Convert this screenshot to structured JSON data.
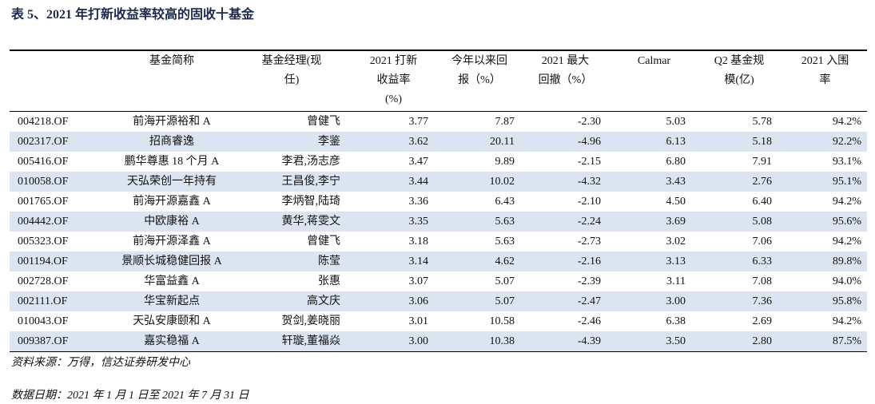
{
  "title": "表 5、2021 年打新收益率较高的固收十基金",
  "table": {
    "headers": [
      [],
      [
        "基金简称"
      ],
      [
        "基金经理(现",
        "任)"
      ],
      [
        "2021 打新",
        "收益率",
        "(%)"
      ],
      [
        "今年以来回",
        "报（%）"
      ],
      [
        "2021 最大",
        "回撤（%）"
      ],
      [
        "Calmar"
      ],
      [
        "Q2 基金规",
        "模(亿)"
      ],
      [
        "2021 入围",
        "率"
      ]
    ],
    "rows": [
      [
        "004218.OF",
        "前海开源裕和 A",
        "曾健飞",
        "3.77",
        "7.87",
        "-2.30",
        "5.03",
        "5.78",
        "94.2%"
      ],
      [
        "002317.OF",
        "招商睿逸",
        "李鉴",
        "3.62",
        "20.11",
        "-4.96",
        "6.13",
        "5.18",
        "92.2%"
      ],
      [
        "005416.OF",
        "鹏华尊惠 18 个月 A",
        "李君,汤志彦",
        "3.47",
        "9.89",
        "-2.15",
        "6.80",
        "7.91",
        "93.1%"
      ],
      [
        "010058.OF",
        "天弘荣创一年持有",
        "王昌俊,李宁",
        "3.44",
        "10.02",
        "-4.32",
        "3.43",
        "2.76",
        "95.1%"
      ],
      [
        "001765.OF",
        "前海开源嘉鑫 A",
        "李炳智,陆琦",
        "3.36",
        "6.43",
        "-2.10",
        "4.50",
        "6.40",
        "94.2%"
      ],
      [
        "004442.OF",
        "中欧康裕 A",
        "黄华,蒋雯文",
        "3.35",
        "5.63",
        "-2.24",
        "3.69",
        "5.08",
        "95.6%"
      ],
      [
        "005323.OF",
        "前海开源泽鑫 A",
        "曾健飞",
        "3.18",
        "5.63",
        "-2.73",
        "3.02",
        "7.06",
        "94.2%"
      ],
      [
        "001194.OF",
        "景顺长城稳健回报 A",
        "陈莹",
        "3.14",
        "4.62",
        "-2.16",
        "3.13",
        "6.33",
        "89.8%"
      ],
      [
        "002728.OF",
        "华富益鑫 A",
        "张惠",
        "3.07",
        "5.07",
        "-2.39",
        "3.11",
        "7.08",
        "94.0%"
      ],
      [
        "002111.OF",
        "华宝新起点",
        "高文庆",
        "3.06",
        "5.07",
        "-2.47",
        "3.00",
        "7.36",
        "95.8%"
      ],
      [
        "010043.OF",
        "天弘安康颐和 A",
        "贺剑,姜晓丽",
        "3.01",
        "10.58",
        "-2.46",
        "6.38",
        "2.69",
        "94.2%"
      ],
      [
        "009387.OF",
        "嘉实稳福 A",
        "轩璇,董福焱",
        "3.00",
        "10.38",
        "-4.39",
        "3.50",
        "2.80",
        "87.5%"
      ]
    ]
  },
  "source": "资料来源：万得，信达证券研发中心",
  "date_note": "数据日期：2021 年 1 月 1 日至 2021 年 7 月 31 日"
}
